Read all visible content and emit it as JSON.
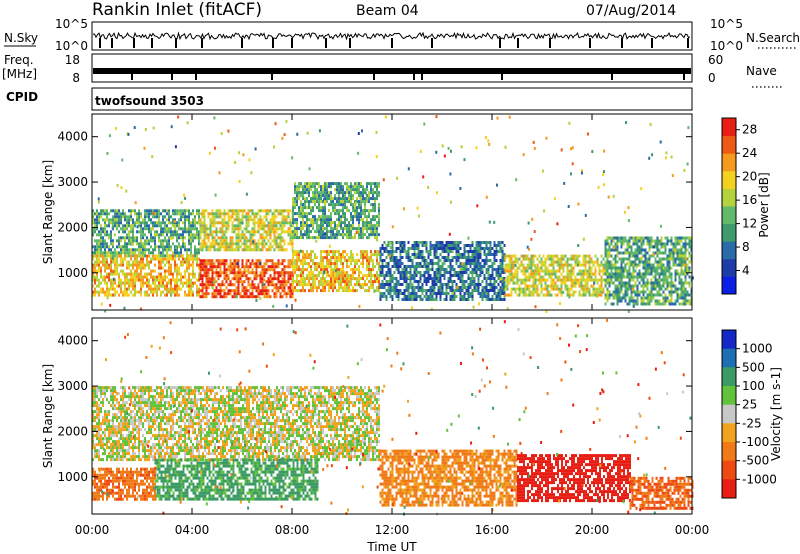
{
  "header": {
    "station": "Rankin Inlet (fitACF)",
    "beam": "Beam 04",
    "date": "07/Aug/2014"
  },
  "strip": {
    "nsky_label": "N.Sky",
    "nsky_ticks": [
      "10^5",
      "10^0"
    ],
    "nsearch_label": "N.Search",
    "nsearch_ticks": [
      "10^5",
      "10^0"
    ],
    "freq_label": "Freq.",
    "freq_unit": "[MHz]",
    "freq_ticks": [
      "18",
      "8"
    ],
    "nave_label": "Nave",
    "nave_ticks": [
      "60",
      "0"
    ],
    "cpid_label": "CPID",
    "cpid_value": "twofsound 3503"
  },
  "colors": {
    "power": [
      "#0a1ee6",
      "#1e3ca8",
      "#2b6aa8",
      "#3f9b6e",
      "#62b96c",
      "#b4d23c",
      "#f2d21e",
      "#f59a1e",
      "#ee5a14",
      "#e81e14"
    ],
    "velocity": [
      "#e81e14",
      "#ee4a14",
      "#f07a18",
      "#f0a41e",
      "#c8c8c8",
      "#c8c8c8",
      "#62c23c",
      "#3c9b64",
      "#1e6eb4",
      "#1428c8"
    ]
  },
  "chart_data": [
    {
      "type": "heatmap",
      "panel": "power",
      "ylabel": "Slant Range [km]",
      "xlabel": "",
      "x_ticks": [
        "00:00",
        "04:00",
        "08:00",
        "12:00",
        "16:00",
        "20:00",
        "00:00"
      ],
      "y_ticks": [
        "1000",
        "2000",
        "3000",
        "4000"
      ],
      "xlim_hours": [
        0,
        24
      ],
      "ylim_km": [
        180,
        4500
      ],
      "colorbar": {
        "label": "Power [dB]",
        "ticks": [
          "4",
          "8",
          "12",
          "16",
          "20",
          "24",
          "28"
        ],
        "range": [
          0,
          30
        ]
      },
      "regions": [
        {
          "t": [
            0.0,
            4.3
          ],
          "r": [
            1400,
            2400
          ],
          "level": 12
        },
        {
          "t": [
            0.0,
            4.3
          ],
          "r": [
            500,
            1400
          ],
          "level": 20
        },
        {
          "t": [
            4.3,
            8.0
          ],
          "r": [
            500,
            1300
          ],
          "level": 26
        },
        {
          "t": [
            4.3,
            8.0
          ],
          "r": [
            1500,
            2400
          ],
          "level": 18
        },
        {
          "t": [
            8.0,
            11.5
          ],
          "r": [
            600,
            1500
          ],
          "level": 20
        },
        {
          "t": [
            8.0,
            11.5
          ],
          "r": [
            1800,
            3000
          ],
          "level": 12
        },
        {
          "t": [
            11.5,
            16.5
          ],
          "r": [
            400,
            1700
          ],
          "level": 8
        },
        {
          "t": [
            16.5,
            20.5
          ],
          "r": [
            500,
            1400
          ],
          "level": 18
        },
        {
          "t": [
            20.5,
            24.0
          ],
          "r": [
            300,
            1800
          ],
          "level": 12
        }
      ]
    },
    {
      "type": "heatmap",
      "panel": "velocity",
      "ylabel": "Slant Range [km]",
      "xlabel": "Time UT",
      "x_ticks": [
        "00:00",
        "04:00",
        "08:00",
        "12:00",
        "16:00",
        "20:00",
        "00:00"
      ],
      "y_ticks": [
        "1000",
        "2000",
        "3000",
        "4000"
      ],
      "xlim_hours": [
        0,
        24
      ],
      "ylim_km": [
        180,
        4500
      ],
      "colorbar": {
        "label": "Velocity [m s-1]",
        "ticks": [
          "1000",
          "500",
          "100",
          "25",
          "-25",
          "-100",
          "-500",
          "-1000"
        ]
      },
      "regions": [
        {
          "t": [
            0.0,
            11.5
          ],
          "r": [
            1400,
            3000
          ],
          "velocity": 0
        },
        {
          "t": [
            2.5,
            9.0
          ],
          "r": [
            500,
            1400
          ],
          "velocity": 150
        },
        {
          "t": [
            0.0,
            2.5
          ],
          "r": [
            500,
            1200
          ],
          "velocity": -200
        },
        {
          "t": [
            11.5,
            17.0
          ],
          "r": [
            400,
            1600
          ],
          "velocity": -150
        },
        {
          "t": [
            17.0,
            21.5
          ],
          "r": [
            500,
            1500
          ],
          "velocity": -600
        },
        {
          "t": [
            21.5,
            24.0
          ],
          "r": [
            300,
            1000
          ],
          "velocity": -250
        }
      ]
    }
  ]
}
